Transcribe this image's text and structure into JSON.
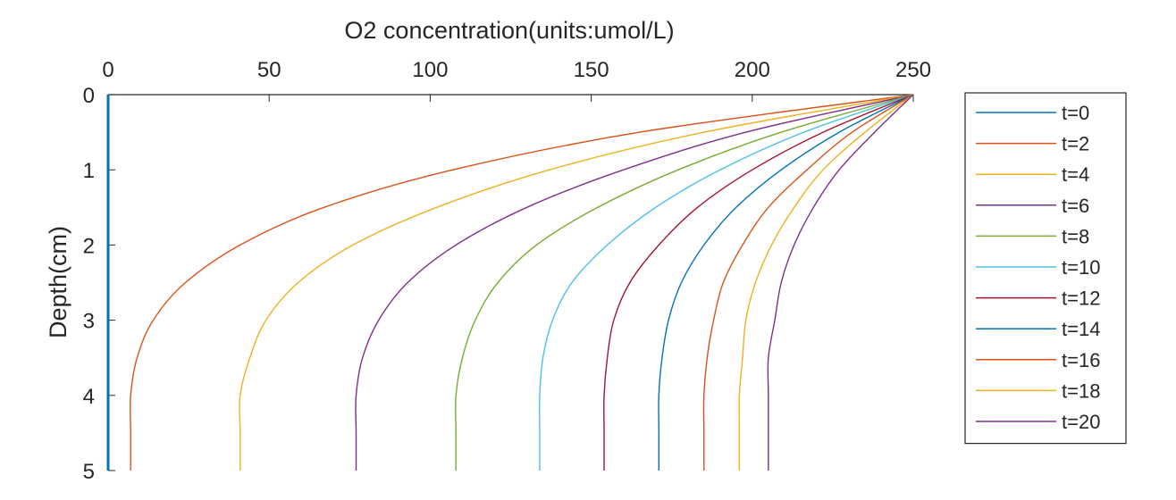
{
  "chart_data": {
    "type": "line",
    "title": "",
    "xlabel": "O2 concentration(units:umol/L)",
    "ylabel": "Depth(cm)",
    "xlim": [
      0,
      250
    ],
    "ylim": [
      0,
      5
    ],
    "x_axis_position": "top",
    "y_axis_direction": "reversed",
    "xticks": [
      "0",
      "50",
      "100",
      "150",
      "200",
      "250"
    ],
    "yticks": [
      "0",
      "1",
      "2",
      "3",
      "4",
      "5"
    ],
    "grid": false,
    "legend_position": "right",
    "y": [
      0,
      0.5,
      1,
      1.5,
      2,
      2.5,
      3,
      3.5,
      4,
      4.5,
      5
    ],
    "series": [
      {
        "name": "t=0",
        "color": "#0072BD",
        "x": [
          0,
          0,
          0,
          0,
          0,
          0,
          0,
          0,
          0,
          0,
          0
        ]
      },
      {
        "name": "t=2",
        "color": "#D95319",
        "x": [
          250,
          165,
          107,
          67,
          41,
          24,
          14,
          9,
          7,
          7,
          7
        ]
      },
      {
        "name": "t=4",
        "color": "#EDB120",
        "x": [
          250,
          185,
          137,
          102,
          76,
          59,
          49,
          44,
          41,
          41,
          41
        ]
      },
      {
        "name": "t=6",
        "color": "#7E2F8E",
        "x": [
          250,
          198,
          160,
          130,
          108,
          93,
          84,
          79,
          77,
          77,
          77
        ]
      },
      {
        "name": "t=8",
        "color": "#77AC30",
        "x": [
          250,
          209,
          177,
          152,
          133,
          121,
          114,
          110,
          108,
          108,
          108
        ]
      },
      {
        "name": "t=10",
        "color": "#4DBEEE",
        "x": [
          250,
          216,
          190,
          170,
          155,
          144,
          138,
          135,
          134,
          134,
          134
        ]
      },
      {
        "name": "t=12",
        "color": "#A2142F",
        "x": [
          250,
          222,
          200,
          183,
          171,
          162,
          157,
          155,
          154,
          154,
          154
        ]
      },
      {
        "name": "t=14",
        "color": "#0072BD",
        "x": [
          250,
          227,
          209,
          195,
          185,
          178,
          174,
          172,
          171,
          171,
          171
        ]
      },
      {
        "name": "t=16",
        "color": "#D95319",
        "x": [
          250,
          231,
          217,
          205,
          197,
          191,
          188,
          186,
          185,
          185,
          185
        ]
      },
      {
        "name": "t=18",
        "color": "#EDB120",
        "x": [
          250,
          235,
          222,
          213,
          206,
          201,
          198,
          197,
          196,
          196,
          196
        ]
      },
      {
        "name": "t=20",
        "color": "#7E2F8E",
        "x": [
          250,
          238,
          227,
          219,
          213,
          209,
          207,
          205,
          205,
          205,
          205
        ]
      }
    ]
  }
}
